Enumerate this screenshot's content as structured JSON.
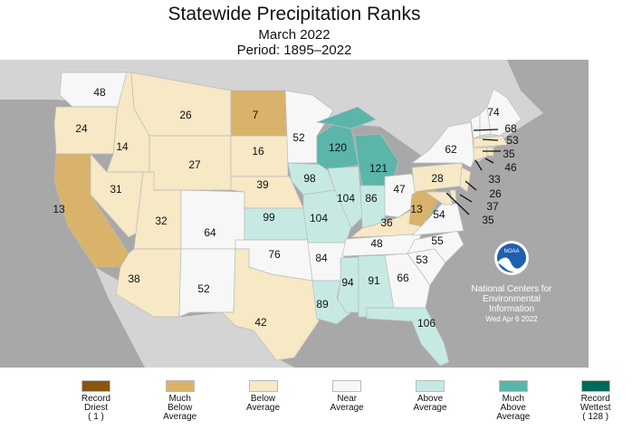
{
  "title": "Statewide Precipitation Ranks",
  "subtitle": "March 2022",
  "period": "Period: 1895–2022",
  "credit": {
    "line1": "National Centers for",
    "line2": "Environmental",
    "line3": "Information",
    "date": "Wed Apr  6 2022",
    "logo_text": "NOAA"
  },
  "colors": {
    "record_driest": "#8B5410",
    "much_below": "#D9B36A",
    "below": "#F7E8C6",
    "near": "#F7F7F7",
    "above": "#C6EAE3",
    "much_above": "#5BB5A9",
    "record_wettest": "#00695A",
    "ocean": "#A8A8A8",
    "land": "#D4D4D4"
  },
  "legend": [
    {
      "key": "record_driest",
      "lines": [
        "Record",
        "Driest",
        "( 1 )"
      ]
    },
    {
      "key": "much_below",
      "lines": [
        "Much",
        "Below",
        "Average"
      ]
    },
    {
      "key": "below",
      "lines": [
        "Below",
        "Average"
      ]
    },
    {
      "key": "near",
      "lines": [
        "Near",
        "Average"
      ]
    },
    {
      "key": "above",
      "lines": [
        "Above",
        "Average"
      ]
    },
    {
      "key": "much_above",
      "lines": [
        "Much",
        "Above",
        "Average"
      ]
    },
    {
      "key": "record_wettest",
      "lines": [
        "Record",
        "Wettest",
        "( 128 )"
      ]
    }
  ],
  "states": {
    "WA": {
      "rank": "48",
      "cat": "near"
    },
    "OR": {
      "rank": "24",
      "cat": "below"
    },
    "CA": {
      "rank": "13",
      "cat": "much_below"
    },
    "ID": {
      "rank": "14",
      "cat": "below"
    },
    "NV": {
      "rank": "31",
      "cat": "below"
    },
    "MT": {
      "rank": "26",
      "cat": "below"
    },
    "WY": {
      "rank": "27",
      "cat": "below"
    },
    "UT": {
      "rank": "32",
      "cat": "below"
    },
    "AZ": {
      "rank": "38",
      "cat": "below"
    },
    "CO": {
      "rank": "64",
      "cat": "near"
    },
    "NM": {
      "rank": "52",
      "cat": "near"
    },
    "ND": {
      "rank": "7",
      "cat": "much_below"
    },
    "SD": {
      "rank": "16",
      "cat": "below"
    },
    "NE": {
      "rank": "39",
      "cat": "below"
    },
    "KS": {
      "rank": "99",
      "cat": "above"
    },
    "OK": {
      "rank": "76",
      "cat": "near"
    },
    "TX": {
      "rank": "42",
      "cat": "below"
    },
    "MN": {
      "rank": "52",
      "cat": "near"
    },
    "IA": {
      "rank": "98",
      "cat": "above"
    },
    "MO": {
      "rank": "104",
      "cat": "above"
    },
    "AR": {
      "rank": "84",
      "cat": "near"
    },
    "LA": {
      "rank": "89",
      "cat": "above"
    },
    "WI": {
      "rank": "120",
      "cat": "much_above"
    },
    "IL": {
      "rank": "104",
      "cat": "above"
    },
    "MI": {
      "rank": "121",
      "cat": "much_above"
    },
    "IN": {
      "rank": "86",
      "cat": "above"
    },
    "OH": {
      "rank": "47",
      "cat": "near"
    },
    "KY": {
      "rank": "36",
      "cat": "below"
    },
    "TN": {
      "rank": "48",
      "cat": "near"
    },
    "MS": {
      "rank": "94",
      "cat": "above"
    },
    "AL": {
      "rank": "91",
      "cat": "above"
    },
    "GA": {
      "rank": "66",
      "cat": "near"
    },
    "FL": {
      "rank": "106",
      "cat": "above"
    },
    "SC": {
      "rank": "53",
      "cat": "near"
    },
    "NC": {
      "rank": "55",
      "cat": "near"
    },
    "VA": {
      "rank": "54",
      "cat": "near"
    },
    "WV": {
      "rank": "13",
      "cat": "much_below"
    },
    "PA": {
      "rank": "28",
      "cat": "below"
    },
    "NY": {
      "rank": "62",
      "cat": "near"
    },
    "MD": {
      "rank": "35",
      "cat": "below"
    },
    "DE": {
      "rank": "37",
      "cat": "below"
    },
    "NJ": {
      "rank": "26",
      "cat": "below"
    },
    "VT": {
      "rank": "68",
      "cat": "near"
    },
    "NH": {
      "rank": "53",
      "cat": "near"
    },
    "ME": {
      "rank": "74",
      "cat": "near"
    },
    "MA": {
      "rank": "35",
      "cat": "below"
    },
    "CT": {
      "rank": "33",
      "cat": "below"
    },
    "RI": {
      "rank": "46",
      "cat": "below"
    }
  }
}
